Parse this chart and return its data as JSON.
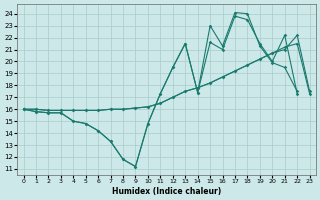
{
  "xlabel": "Humidex (Indice chaleur)",
  "xlim": [
    -0.5,
    23.5
  ],
  "ylim": [
    10.5,
    24.8
  ],
  "yticks": [
    11,
    12,
    13,
    14,
    15,
    16,
    17,
    18,
    19,
    20,
    21,
    22,
    23,
    24
  ],
  "xticks": [
    0,
    1,
    2,
    3,
    4,
    5,
    6,
    7,
    8,
    9,
    10,
    11,
    12,
    13,
    14,
    15,
    16,
    17,
    18,
    19,
    20,
    21,
    22,
    23
  ],
  "bg_color": "#cce8e8",
  "line_color": "#1a7a6e",
  "grid_color": "#aacccc",
  "line1_x": [
    0,
    1,
    2,
    3,
    4,
    5,
    6,
    7,
    8,
    9,
    10,
    11,
    12,
    13,
    14,
    15,
    16,
    17,
    18,
    19,
    20,
    21,
    22
  ],
  "line1_y": [
    16,
    15.8,
    15.7,
    15.7,
    15.0,
    14.8,
    14.2,
    13.3,
    11.8,
    11.2,
    14.8,
    17.3,
    19.5,
    21.5,
    17.4,
    23.0,
    21.3,
    24.1,
    24.0,
    21.3,
    19.9,
    19.5,
    17.5
  ],
  "line2_x": [
    0,
    1,
    2,
    3,
    4,
    5,
    6,
    7,
    8,
    9,
    10,
    11,
    12,
    13,
    14,
    15,
    16,
    17,
    18,
    19,
    20,
    21,
    22
  ],
  "line2_y": [
    16,
    15.8,
    15.7,
    15.7,
    15.0,
    14.8,
    14.2,
    13.3,
    11.8,
    11.2,
    14.8,
    17.3,
    19.5,
    21.5,
    17.4,
    21.6,
    21.0,
    23.8,
    23.5,
    21.5,
    20.0,
    22.2,
    17.3
  ],
  "line3_x": [
    0,
    1,
    2,
    3,
    4,
    5,
    6,
    7,
    8,
    9,
    10,
    11,
    12,
    13,
    14,
    15,
    16,
    17,
    18,
    19,
    20,
    21,
    22,
    23
  ],
  "line3_y": [
    16,
    16,
    15.9,
    15.9,
    15.9,
    15.9,
    15.9,
    16.0,
    16.0,
    16.1,
    16.2,
    16.5,
    17.0,
    17.5,
    17.8,
    18.2,
    18.7,
    19.2,
    19.7,
    20.2,
    20.7,
    21.2,
    21.5,
    17.3
  ],
  "line4_x": [
    0,
    1,
    2,
    3,
    4,
    5,
    6,
    7,
    8,
    9,
    10,
    11,
    12,
    13,
    14,
    15,
    16,
    17,
    18,
    19,
    20,
    21,
    22,
    23
  ],
  "line4_y": [
    16,
    16,
    15.9,
    15.9,
    15.9,
    15.9,
    15.9,
    16.0,
    16.0,
    16.1,
    16.2,
    16.5,
    17.0,
    17.5,
    17.8,
    18.2,
    18.7,
    19.2,
    19.7,
    20.2,
    20.7,
    21.0,
    22.2,
    17.5
  ]
}
